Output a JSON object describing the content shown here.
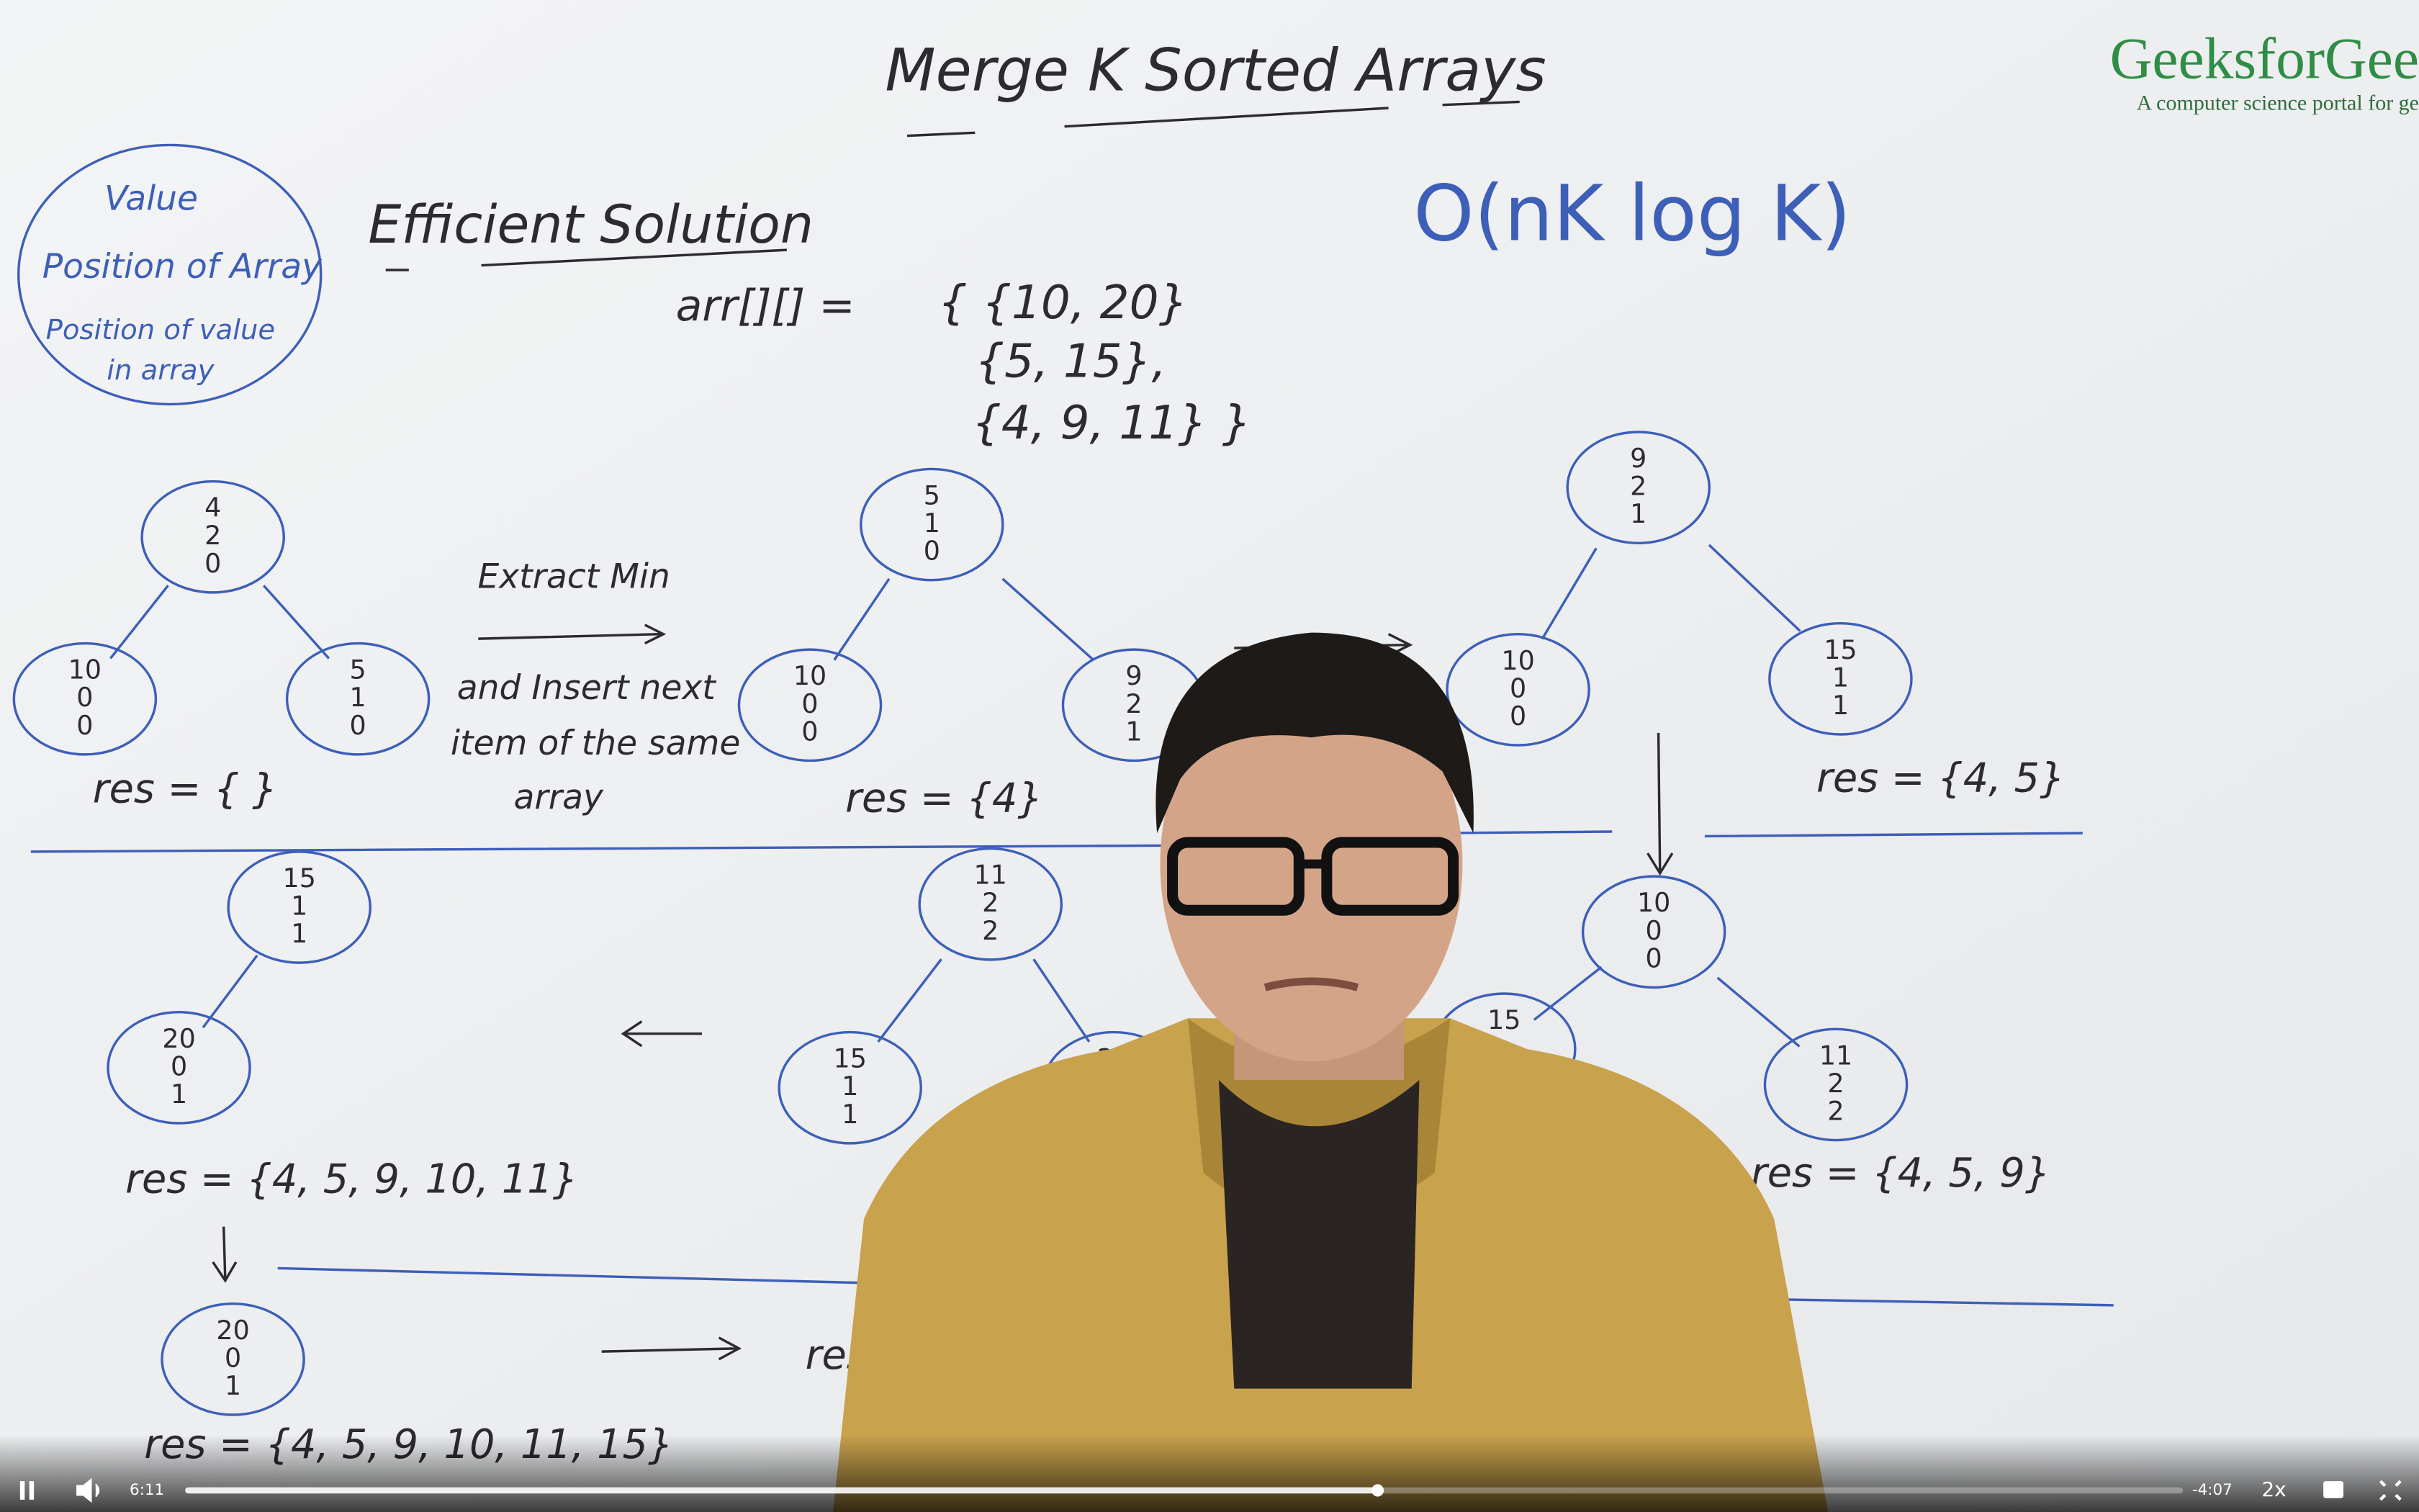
{
  "player": {
    "elapsed": "6:11",
    "remaining": "-4:07",
    "speed": "2x"
  },
  "watermark": {
    "brand": "GeeksforGee",
    "tagline": "A computer science portal for ge"
  },
  "board": {
    "title": "Merge K Sorted Arrays",
    "heading": "Efficient Solution",
    "complexity": "O(nK log K)",
    "note": [
      "Value",
      "Position of Array",
      "Position of value",
      "in array"
    ],
    "array": [
      "arr[][] =",
      "{ {10, 20}",
      "{5, 15},",
      "{4, 9, 11} }"
    ],
    "step": [
      "Extract Min",
      "and Insert next",
      "item of the same",
      "array"
    ],
    "trees": [
      {
        "nodes": [
          [
            "4",
            "2",
            "0"
          ],
          [
            "10",
            "0",
            "0"
          ],
          [
            "5",
            "1",
            "0"
          ]
        ],
        "result": "res = { }"
      },
      {
        "nodes": [
          [
            "5",
            "1",
            "0"
          ],
          [
            "10",
            "0",
            "0"
          ],
          [
            "9",
            "2",
            "1"
          ]
        ],
        "result": "res = {4}"
      },
      {
        "nodes": [
          [
            "9",
            "2",
            "1"
          ],
          [
            "10",
            "0",
            "0"
          ],
          [
            "15",
            "1",
            "1"
          ]
        ],
        "result": "res = {4, 5}"
      },
      {
        "nodes": [
          [
            "10",
            "0",
            "0"
          ],
          [
            "15"
          ],
          [
            "11",
            "2",
            "2"
          ]
        ],
        "result": "res = {4, 5, 9}"
      },
      {
        "nodes": [
          [
            "11",
            "2",
            "2"
          ],
          [
            "15",
            "1",
            "1"
          ],
          [
            "20"
          ]
        ],
        "result": "res"
      },
      {
        "nodes": [
          [
            "15",
            "1",
            "1"
          ],
          [
            "20",
            "0",
            "1"
          ]
        ],
        "result": "res = {4, 5, 9, 10, 11}"
      },
      {
        "nodes": [
          [
            "20",
            "0",
            "1"
          ]
        ],
        "result": "res = {4, 5, 9, 10, 11, 15}"
      }
    ],
    "partial_result": "res ="
  }
}
